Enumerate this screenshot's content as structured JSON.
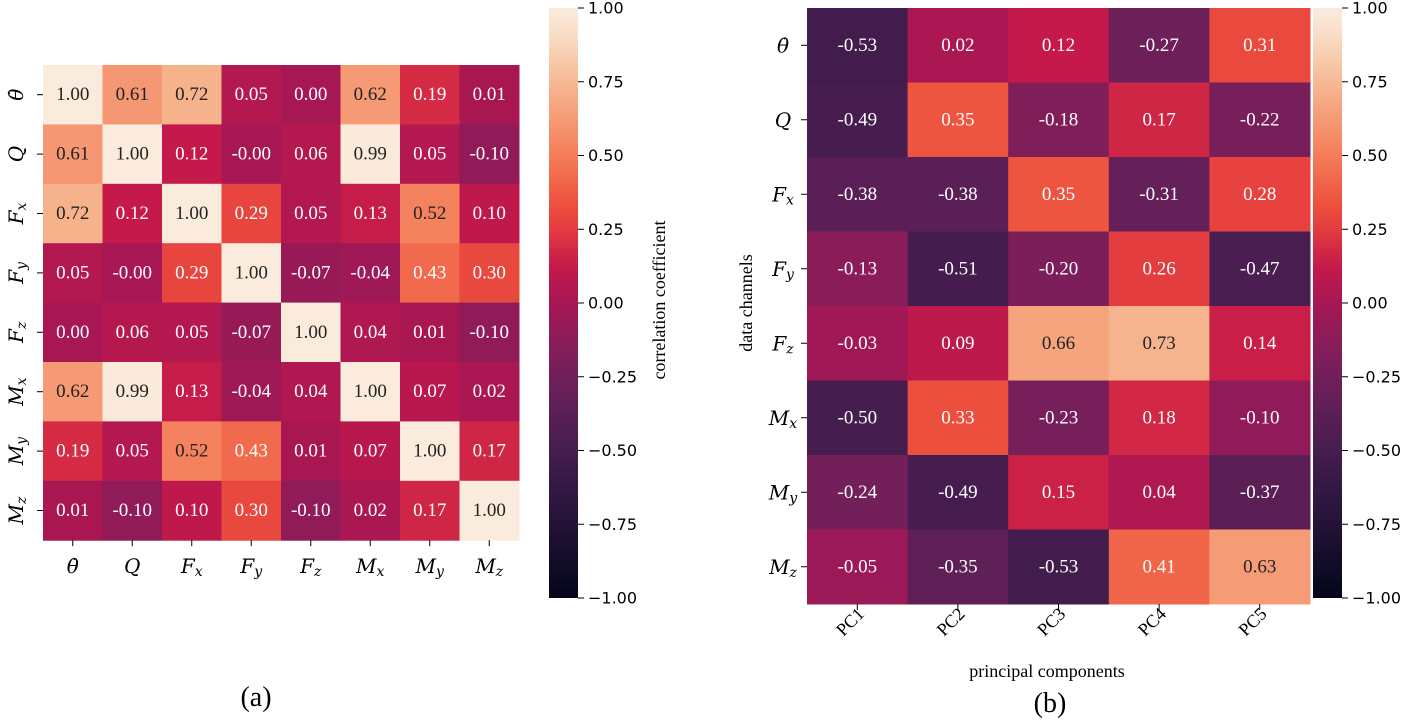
{
  "chart_data": [
    {
      "type": "heatmap",
      "panel": "a",
      "caption": "(a)",
      "rows": [
        "θ̇",
        "Q",
        "F_x",
        "F_y",
        "F_z",
        "M_x",
        "M_y",
        "M_z"
      ],
      "columns": [
        "θ̇",
        "Q",
        "F_x",
        "F_y",
        "F_z",
        "M_x",
        "M_y",
        "M_z"
      ],
      "values": [
        [
          1.0,
          0.61,
          0.72,
          0.05,
          0.0,
          0.62,
          0.19,
          0.01
        ],
        [
          0.61,
          1.0,
          0.12,
          -0.0,
          0.06,
          0.99,
          0.05,
          -0.1
        ],
        [
          0.72,
          0.12,
          1.0,
          0.29,
          0.05,
          0.13,
          0.52,
          0.1
        ],
        [
          0.05,
          -0.0,
          0.29,
          1.0,
          -0.07,
          -0.04,
          0.43,
          0.3
        ],
        [
          0.0,
          0.06,
          0.05,
          -0.07,
          1.0,
          0.04,
          0.01,
          -0.1
        ],
        [
          0.62,
          0.99,
          0.13,
          -0.04,
          0.04,
          1.0,
          0.07,
          0.02
        ],
        [
          0.19,
          0.05,
          0.52,
          0.43,
          0.01,
          0.07,
          1.0,
          0.17
        ],
        [
          0.01,
          -0.1,
          0.1,
          0.3,
          -0.1,
          0.02,
          0.17,
          1.0
        ]
      ],
      "colorbar": {
        "label": "correlation coefficient",
        "range": [
          -1.0,
          1.0
        ],
        "ticks": [
          "1.00",
          "0.75",
          "0.50",
          "0.25",
          "0.00",
          "−0.25",
          "−0.50",
          "−0.75",
          "−1.00"
        ]
      }
    },
    {
      "type": "heatmap",
      "panel": "b",
      "caption": "(b)",
      "xlabel": "principal components",
      "ylabel": "data channels",
      "rows": [
        "θ̇",
        "Q",
        "F_x",
        "F_y",
        "F_z",
        "M_x",
        "M_y",
        "M_z"
      ],
      "columns": [
        "PC1",
        "PC2",
        "PC3",
        "PC4",
        "PC5"
      ],
      "values": [
        [
          -0.53,
          0.02,
          0.12,
          -0.27,
          0.31
        ],
        [
          -0.49,
          0.35,
          -0.18,
          0.17,
          -0.22
        ],
        [
          -0.38,
          -0.38,
          0.35,
          -0.31,
          0.28
        ],
        [
          -0.13,
          -0.51,
          -0.2,
          0.26,
          -0.47
        ],
        [
          -0.03,
          0.09,
          0.66,
          0.73,
          0.14
        ],
        [
          -0.5,
          0.33,
          -0.23,
          0.18,
          -0.1
        ],
        [
          -0.24,
          -0.49,
          0.15,
          0.04,
          -0.37
        ],
        [
          -0.05,
          -0.35,
          -0.53,
          0.41,
          0.63
        ]
      ],
      "colorbar": {
        "range": [
          -1.0,
          1.0
        ],
        "ticks": [
          "1.00",
          "0.75",
          "0.50",
          "0.25",
          "0.00",
          "−0.25",
          "−0.50",
          "−0.75",
          "−1.00"
        ]
      }
    }
  ]
}
